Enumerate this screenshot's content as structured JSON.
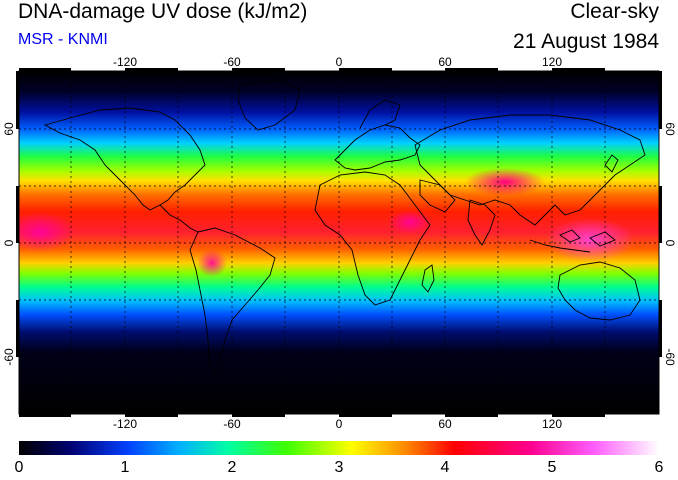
{
  "header": {
    "title": "DNA-damage UV dose (kJ/m2)",
    "source": "MSR - KNMI",
    "condition": "Clear-sky",
    "date": "21 August 1984"
  },
  "map": {
    "type": "global UV dose map",
    "lon_ticks": [
      "-120",
      "-60",
      "0",
      "60",
      "120"
    ],
    "lat_ticks": [
      "60",
      "0",
      "-60"
    ],
    "grid": "dashed",
    "colors": {
      "ocean_dark": "#000010",
      "coast": "#000000"
    }
  },
  "colorbar": {
    "labels": [
      "0",
      "1",
      "2",
      "3",
      "4",
      "5",
      "6"
    ],
    "min": 0,
    "max": 6,
    "stops": [
      "#000000",
      "#000080",
      "#0040ff",
      "#00c0ff",
      "#00ff80",
      "#40ff00",
      "#ffff00",
      "#ff8000",
      "#ff0000",
      "#ff0080",
      "#ff40ff",
      "#ffc0ff",
      "#ffffff"
    ]
  }
}
